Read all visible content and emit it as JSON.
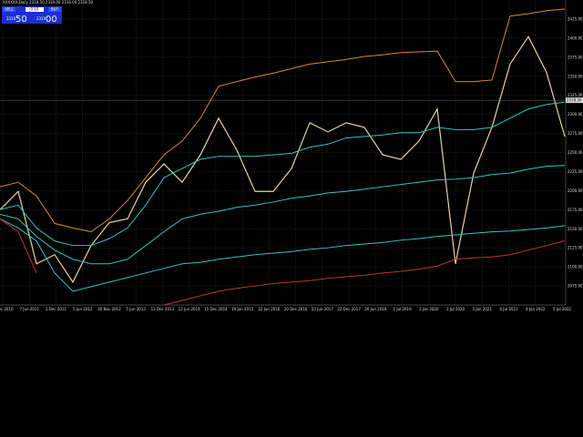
{
  "chart_data": {
    "type": "line",
    "title": "XXXXXX,Daily  2318.50 2319.00 2316.00 2318.50",
    "x_labels": [
      "2 Dec 2010",
      "7 Jun 2011",
      "2 Dec 2011",
      "5 Jun 2012",
      "30 Nov 2012",
      "5 Jun 2013",
      "13 Dec 2013",
      "13 Jun 2014",
      "15 Dec 2014",
      "19 Jun 2015",
      "22 Jun 2016",
      "20 Dec 2016",
      "23 Jun 2017",
      "22 Dec 2017",
      "26 Jun 2018",
      "1 Jul 2019",
      "2 Jan 2020",
      "3 Jul 2020",
      "5 Jan 2021",
      "6 Jul 2021",
      "4 Jan 2022",
      "5 Jul 2022"
    ],
    "ylim": [
      2050,
      2450
    ],
    "yticks": [
      {
        "value": 2075,
        "label": "2075.00"
      },
      {
        "value": 2100,
        "label": "2100.00"
      },
      {
        "value": 2125,
        "label": "2125.00"
      },
      {
        "value": 2150,
        "label": "2150.00"
      },
      {
        "value": 2175,
        "label": "2175.00"
      },
      {
        "value": 2200,
        "label": "2200.00"
      },
      {
        "value": 2225,
        "label": "2225.00"
      },
      {
        "value": 2250,
        "label": "2250.00"
      },
      {
        "value": 2275,
        "label": "2275.00"
      },
      {
        "value": 2300,
        "label": "2300.00"
      },
      {
        "value": 2325,
        "label": "2325.00"
      },
      {
        "value": 2350,
        "label": "2350.00"
      },
      {
        "value": 2375,
        "label": "2375.00"
      },
      {
        "value": 2400,
        "label": "2400.00"
      },
      {
        "value": 2425,
        "label": "2425.00"
      }
    ],
    "grid": true,
    "current_price": {
      "value": 2318.5,
      "label": "2318.50"
    },
    "series": [
      {
        "color": "#e8d3a0",
        "width": 1.2,
        "values": [
          2175,
          2199,
          2104,
          2116,
          2080,
          2128,
          2158,
          2163,
          2211,
          2235,
          2211,
          2247,
          2295,
          2253,
          2199,
          2199,
          2229,
          2289,
          2277,
          2289,
          2283,
          2247,
          2241,
          2265,
          2307,
          2104,
          2223,
          2283,
          2366,
          2402,
          2355,
          2271
        ]
      },
      {
        "color": "#d9892a",
        "width": 1,
        "values": [
          2205,
          2211,
          2193,
          2157,
          2151,
          2146,
          2163,
          2187,
          2217,
          2247,
          2265,
          2295,
          2337,
          2343,
          2349,
          2354,
          2360,
          2366,
          2369,
          2372,
          2376,
          2378,
          2381,
          2382,
          2383,
          2343,
          2343,
          2345,
          2429,
          2432,
          2436,
          2438
        ]
      },
      {
        "color": "#2fc4c8",
        "width": 1,
        "values": [
          2175,
          2181,
          2151,
          2134,
          2128,
          2128,
          2137,
          2151,
          2181,
          2217,
          2229,
          2241,
          2245,
          2245,
          2245,
          2247,
          2249,
          2257,
          2261,
          2269,
          2271,
          2273,
          2276,
          2276,
          2283,
          2280,
          2280,
          2283,
          2295,
          2307,
          2313,
          2316
        ]
      },
      {
        "color": "#2fc4c8",
        "width": 1,
        "values": [
          2169,
          2163,
          2140,
          2122,
          2110,
          2104,
          2104,
          2110,
          2128,
          2146,
          2163,
          2169,
          2173,
          2178,
          2181,
          2185,
          2190,
          2193,
          2197,
          2199,
          2202,
          2205,
          2208,
          2211,
          2214,
          2215,
          2217,
          2221,
          2223,
          2228,
          2232,
          2233
        ]
      },
      {
        "color": "#2fc4c8",
        "width": 1,
        "values": [
          2163,
          2151,
          2134,
          2092,
          2068,
          2074,
          2080,
          2086,
          2092,
          2098,
          2104,
          2106,
          2110,
          2113,
          2116,
          2118,
          2120,
          2123,
          2125,
          2128,
          2130,
          2132,
          2135,
          2137,
          2140,
          2142,
          2144,
          2146,
          2147,
          2149,
          2151,
          2154
        ]
      },
      {
        "color": "#c0392b",
        "width": 1,
        "values": [
          2163,
          2146,
          2092,
          null,
          null,
          null,
          null,
          null,
          null,
          2050,
          2056,
          2062,
          2068,
          2072,
          2075,
          2078,
          2080,
          2082,
          2085,
          2087,
          2089,
          2092,
          2094,
          2097,
          2101,
          2110,
          2112,
          2113,
          2116,
          2122,
          2128,
          2134
        ]
      }
    ]
  },
  "trade_panel": {
    "sell": "SELL",
    "volume": "0.10",
    "buy": "BUY",
    "sell_small": "2318",
    "sell_big": "50",
    "buy_small": "2319",
    "buy_big": "00"
  }
}
